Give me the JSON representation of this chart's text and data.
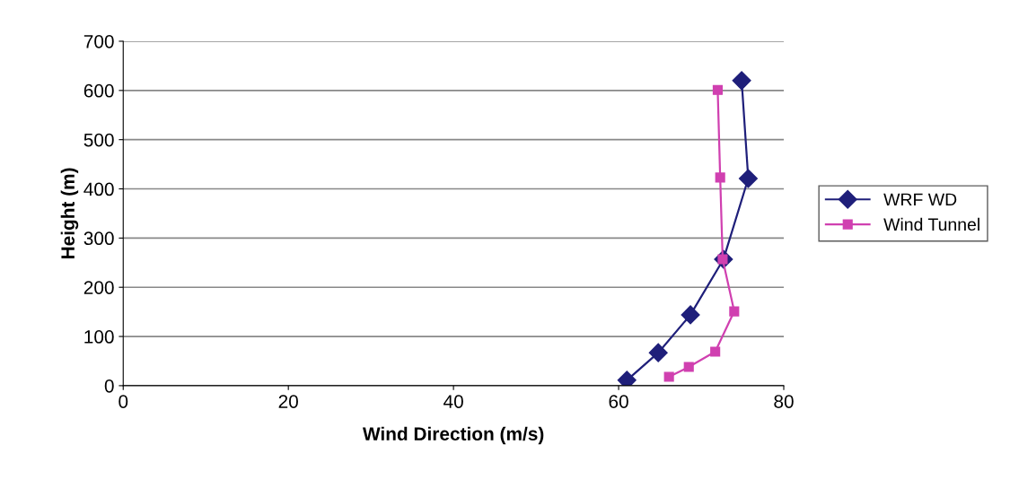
{
  "chart_data": {
    "type": "line",
    "xlabel": "Wind Direction (m/s)",
    "ylabel": "Height (m)",
    "xlim": [
      0,
      80
    ],
    "xticks": [
      0,
      20,
      40,
      60,
      80
    ],
    "ylim": [
      0,
      700
    ],
    "yticks": [
      0,
      100,
      200,
      300,
      400,
      500,
      600,
      700
    ],
    "grid": "y",
    "legend": "right",
    "series": [
      {
        "name": "WRF WD",
        "color": "#1f1f7a",
        "marker": "diamond",
        "x": [
          61.0,
          64.8,
          68.7,
          72.7,
          75.7,
          74.9
        ],
        "values": [
          11,
          67,
          144,
          257,
          421,
          620
        ]
      },
      {
        "name": "Wind Tunnel",
        "color": "#d040b0",
        "marker": "square",
        "x": [
          66.1,
          68.5,
          71.7,
          74.0,
          72.6,
          72.3,
          72.0
        ],
        "values": [
          18,
          38,
          69,
          151,
          257,
          423,
          601
        ]
      }
    ]
  }
}
